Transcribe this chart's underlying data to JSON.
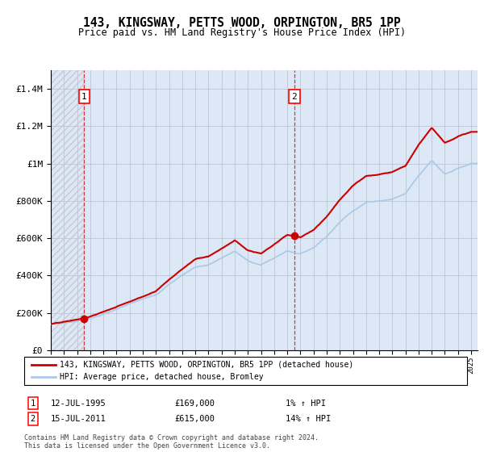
{
  "title": "143, KINGSWAY, PETTS WOOD, ORPINGTON, BR5 1PP",
  "subtitle": "Price paid vs. HM Land Registry's House Price Index (HPI)",
  "legend_line1": "143, KINGSWAY, PETTS WOOD, ORPINGTON, BR5 1PP (detached house)",
  "legend_line2": "HPI: Average price, detached house, Bromley",
  "sale1_date": "12-JUL-1995",
  "sale1_price": "£169,000",
  "sale1_hpi": "1% ↑ HPI",
  "sale1_year": 1995.54,
  "sale1_value": 169000,
  "sale2_date": "15-JUL-2011",
  "sale2_price": "£615,000",
  "sale2_hpi": "14% ↑ HPI",
  "sale2_year": 2011.54,
  "sale2_value": 615000,
  "footnote": "Contains HM Land Registry data © Crown copyright and database right 2024.\nThis data is licensed under the Open Government Licence v3.0.",
  "hpi_color": "#aac8e8",
  "price_color": "#cc0000",
  "marker_color": "#cc0000",
  "ylim_max": 1500000,
  "yticks": [
    0,
    200000,
    400000,
    600000,
    800000,
    1000000,
    1200000,
    1400000
  ],
  "xlim_start": 1993.0,
  "xlim_end": 2025.5,
  "bg_color": "#dce8f5",
  "hatch_color": "#c8c8d8"
}
